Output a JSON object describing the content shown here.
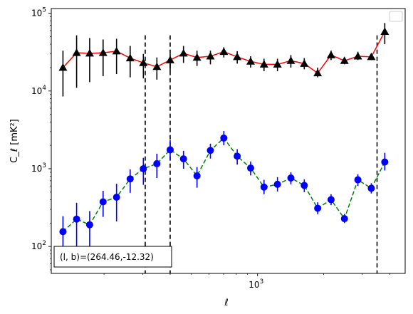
{
  "chart_data": {
    "type": "line",
    "xscale": "log",
    "yscale": "log",
    "xlim": [
      115,
      4700
    ],
    "ylim": [
      45,
      115000
    ],
    "xlabel": "ℓ",
    "ylabel": "C_ℓ [mK²]",
    "x_ticks": [
      {
        "value": 1000,
        "label": "10",
        "exp": "3"
      }
    ],
    "y_ticks": [
      {
        "value": 100,
        "label": "10",
        "exp": "2"
      },
      {
        "value": 1000,
        "label": "10",
        "exp": "3"
      },
      {
        "value": 10000,
        "label": "10",
        "exp": "4"
      },
      {
        "value": 100000,
        "label": "10",
        "exp": "5"
      }
    ],
    "legend": "top-right (empty)",
    "annotation": "(l, b)=(264.46,-12.32)",
    "vlines": [
      308,
      400,
      3500
    ],
    "series": [
      {
        "color": "#ff0000",
        "marker": "triangle",
        "marker_color": "#000000",
        "linestyle": "solid",
        "points": [
          {
            "x": 130,
            "y": 20000,
            "lo": 8500,
            "hi": 33000
          },
          {
            "x": 150,
            "y": 31000,
            "lo": 11000,
            "hi": 52000
          },
          {
            "x": 172,
            "y": 30500,
            "lo": 13000,
            "hi": 48000
          },
          {
            "x": 198,
            "y": 31000,
            "lo": 15500,
            "hi": 46000
          },
          {
            "x": 228,
            "y": 32500,
            "lo": 16500,
            "hi": 47000
          },
          {
            "x": 263,
            "y": 26500,
            "lo": 15000,
            "hi": 38000
          },
          {
            "x": 302,
            "y": 23000,
            "lo": 14500,
            "hi": 30000
          },
          {
            "x": 348,
            "y": 20500,
            "lo": 14000,
            "hi": 27000
          },
          {
            "x": 400,
            "y": 25000,
            "lo": 18000,
            "hi": 30000
          },
          {
            "x": 460,
            "y": 30500,
            "lo": 23000,
            "hi": 38000
          },
          {
            "x": 530,
            "y": 27000,
            "lo": 21000,
            "hi": 33000
          },
          {
            "x": 610,
            "y": 28000,
            "lo": 22000,
            "hi": 33000
          },
          {
            "x": 702,
            "y": 32000,
            "lo": 27000,
            "hi": 36500
          },
          {
            "x": 808,
            "y": 27500,
            "lo": 22500,
            "hi": 32500
          },
          {
            "x": 930,
            "y": 24000,
            "lo": 20000,
            "hi": 28000
          },
          {
            "x": 1070,
            "y": 22000,
            "lo": 18000,
            "hi": 26000
          },
          {
            "x": 1232,
            "y": 22000,
            "lo": 18000,
            "hi": 26000
          },
          {
            "x": 1418,
            "y": 24500,
            "lo": 20000,
            "hi": 29000
          },
          {
            "x": 1632,
            "y": 22500,
            "lo": 19000,
            "hi": 26500
          },
          {
            "x": 1878,
            "y": 17000,
            "lo": 15000,
            "hi": 20000
          },
          {
            "x": 2161,
            "y": 29000,
            "lo": 25000,
            "hi": 33000
          },
          {
            "x": 2487,
            "y": 24500,
            "lo": 22000,
            "hi": 27000
          },
          {
            "x": 2863,
            "y": 28000,
            "lo": 25000,
            "hi": 32000
          },
          {
            "x": 3295,
            "y": 27500,
            "lo": 25000,
            "hi": 30000
          },
          {
            "x": 3795,
            "y": 58000,
            "lo": 40000,
            "hi": 75000
          }
        ]
      },
      {
        "color": "#008000",
        "marker": "circle",
        "marker_color": "#0000ff",
        "linestyle": "dashed",
        "points": [
          {
            "x": 130,
            "y": 155,
            "lo": 95,
            "hi": 245
          },
          {
            "x": 150,
            "y": 225,
            "lo": 70,
            "hi": 365
          },
          {
            "x": 172,
            "y": 190,
            "lo": 65,
            "hi": 285
          },
          {
            "x": 198,
            "y": 375,
            "lo": 240,
            "hi": 520
          },
          {
            "x": 228,
            "y": 430,
            "lo": 210,
            "hi": 640
          },
          {
            "x": 263,
            "y": 740,
            "lo": 490,
            "hi": 980
          },
          {
            "x": 302,
            "y": 1000,
            "lo": 620,
            "hi": 1380
          },
          {
            "x": 348,
            "y": 1160,
            "lo": 760,
            "hi": 1560
          },
          {
            "x": 400,
            "y": 1750,
            "lo": 1300,
            "hi": 2350
          },
          {
            "x": 460,
            "y": 1340,
            "lo": 1000,
            "hi": 1700
          },
          {
            "x": 530,
            "y": 810,
            "lo": 570,
            "hi": 1050
          },
          {
            "x": 610,
            "y": 1720,
            "lo": 1350,
            "hi": 2100
          },
          {
            "x": 702,
            "y": 2480,
            "lo": 2000,
            "hi": 3050
          },
          {
            "x": 808,
            "y": 1450,
            "lo": 1130,
            "hi": 1780
          },
          {
            "x": 930,
            "y": 1020,
            "lo": 820,
            "hi": 1240
          },
          {
            "x": 1070,
            "y": 580,
            "lo": 470,
            "hi": 720
          },
          {
            "x": 1232,
            "y": 630,
            "lo": 510,
            "hi": 780
          },
          {
            "x": 1418,
            "y": 760,
            "lo": 630,
            "hi": 900
          },
          {
            "x": 1632,
            "y": 610,
            "lo": 500,
            "hi": 730
          },
          {
            "x": 1878,
            "y": 310,
            "lo": 260,
            "hi": 370
          },
          {
            "x": 2161,
            "y": 400,
            "lo": 340,
            "hi": 470
          },
          {
            "x": 2487,
            "y": 228,
            "lo": 200,
            "hi": 262
          },
          {
            "x": 2863,
            "y": 720,
            "lo": 600,
            "hi": 850
          },
          {
            "x": 3295,
            "y": 560,
            "lo": 480,
            "hi": 650
          },
          {
            "x": 3795,
            "y": 1220,
            "lo": 950,
            "hi": 1600
          }
        ]
      }
    ]
  }
}
